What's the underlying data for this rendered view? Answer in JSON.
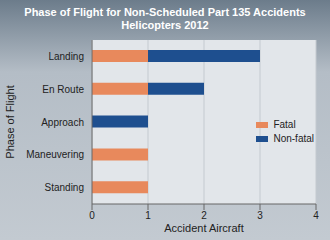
{
  "chart_data": {
    "type": "bar",
    "orientation": "horizontal",
    "stacked": true,
    "title": "Phase of Flight for Non-Scheduled Part 135 Accidents",
    "subtitle": "Helicopters 2012",
    "x_label": "Accident Aircraft",
    "y_label": "Phase of Flight",
    "categories": [
      "Landing",
      "En Route",
      "Approach",
      "Maneuvering",
      "Standing"
    ],
    "series": [
      {
        "name": "Fatal",
        "color": "#e8895c",
        "values": [
          1,
          1,
          0,
          1,
          1
        ]
      },
      {
        "name": "Non-fatal",
        "color": "#1e4f8f",
        "values": [
          2,
          1,
          1,
          0,
          0
        ]
      }
    ],
    "xlim": [
      0,
      4
    ],
    "xticks": [
      0,
      1,
      2,
      3,
      4
    ],
    "grid": true,
    "legend": "right"
  }
}
